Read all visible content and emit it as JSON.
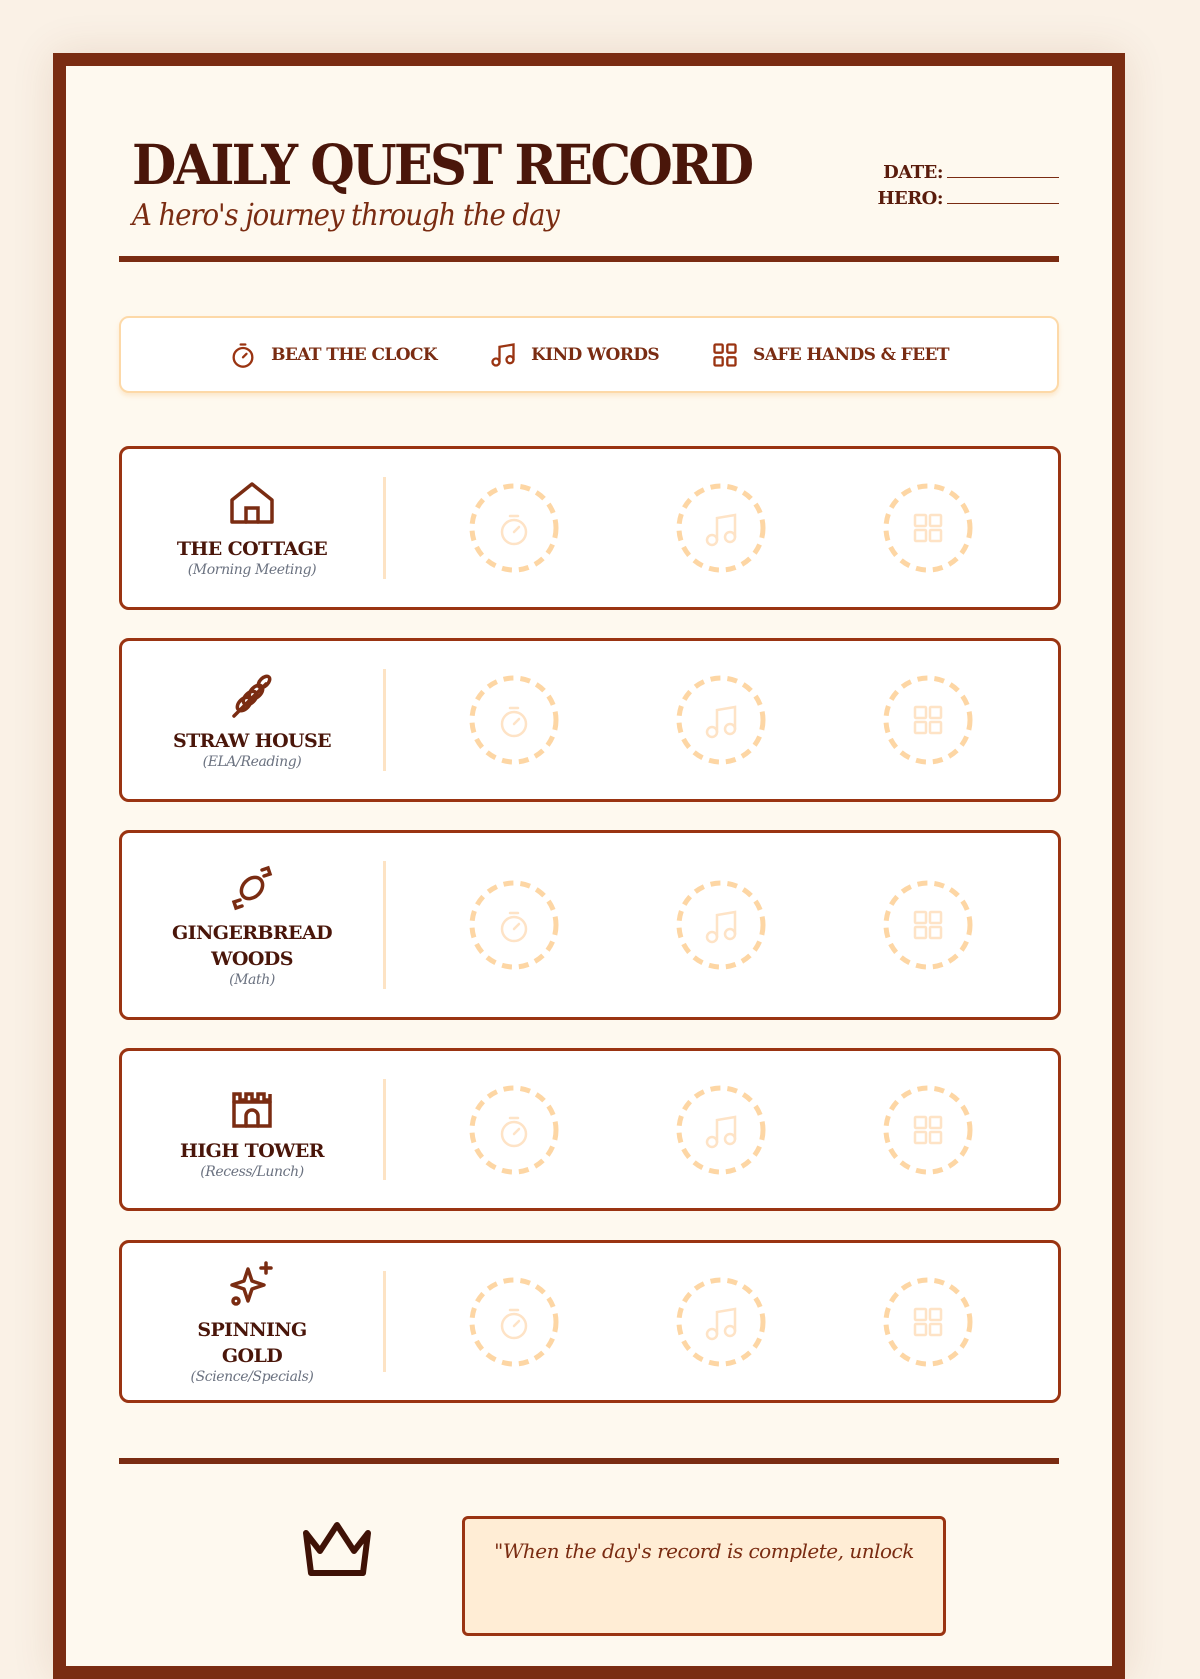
{
  "header": {
    "title": "DAILY QUEST RECORD",
    "subtitle": "A hero's journey through the day",
    "date_label": "DATE:",
    "hero_label": "HERO:"
  },
  "legend": [
    {
      "icon": "stopwatch-icon",
      "label": "BEAT THE CLOCK"
    },
    {
      "icon": "music-note-icon",
      "label": "KIND WORDS"
    },
    {
      "icon": "grid-icon",
      "label": "SAFE HANDS & FEET"
    }
  ],
  "zones": [
    {
      "icon": "house-icon",
      "name": "THE COTTAGE",
      "subject": "(Morning Meeting)"
    },
    {
      "icon": "wheat-icon",
      "name": "STRAW HOUSE",
      "subject": "(ELA/Reading)"
    },
    {
      "icon": "candy-icon",
      "name": "GINGERBREAD WOODS",
      "subject": "(Math)"
    },
    {
      "icon": "castle-icon",
      "name": "HIGH TOWER",
      "subject": "(Recess/Lunch)"
    },
    {
      "icon": "sparkles-icon",
      "name": "SPINNING GOLD",
      "subject": "(Science/Specials)"
    }
  ],
  "footer": {
    "icon": "crown-icon",
    "quote": "\"When the day's record is complete, unlock"
  },
  "colors": {
    "frame": "#7a2c12",
    "ink": "#4a160a",
    "accent": "#9a3412",
    "stamp_placeholder": "#fdd6a4",
    "paper": "#fef9ef"
  }
}
